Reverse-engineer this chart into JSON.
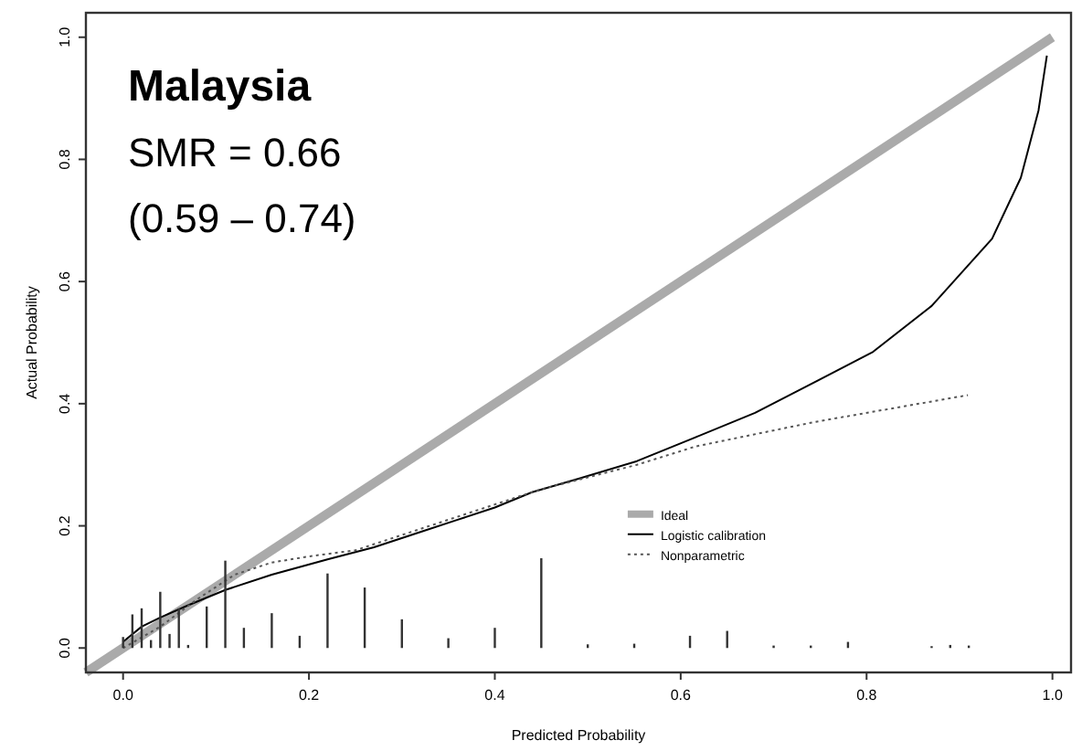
{
  "chart_data": {
    "type": "line",
    "xlabel": "Predicted Probability",
    "ylabel": "Actual Probability",
    "annotations": [
      "Malaysia",
      "SMR = 0.66",
      "(0.59 – 0.74)"
    ],
    "xlim": [
      -0.04,
      1.02
    ],
    "ylim": [
      -0.04,
      1.04
    ],
    "xticks": [
      {
        "value": 0,
        "label": "0.0"
      },
      {
        "value": 0.2,
        "label": "0.2"
      },
      {
        "value": 0.4,
        "label": "0.4"
      },
      {
        "value": 0.6,
        "label": "0.6"
      },
      {
        "value": 0.8,
        "label": "0.8"
      },
      {
        "value": 1,
        "label": "1.0"
      }
    ],
    "yticks": [
      {
        "value": 0,
        "label": "0.0"
      },
      {
        "value": 0.2,
        "label": "0.2"
      },
      {
        "value": 0.4,
        "label": "0.4"
      },
      {
        "value": 0.6,
        "label": "0.6"
      },
      {
        "value": 0.8,
        "label": "0.8"
      },
      {
        "value": 1,
        "label": "1.0"
      }
    ],
    "grid": false,
    "legend": "bottom",
    "series": [
      {
        "name": "Ideal",
        "color": "#aaaaaa",
        "line_style": "solid",
        "x": [
          -0.04,
          1.0
        ],
        "values": [
          -0.04,
          1.0
        ]
      },
      {
        "name": "Logistic calibration",
        "color": "#000000",
        "line_style": "solid",
        "x": [
          0.0,
          0.02,
          0.04,
          0.07,
          0.11,
          0.16,
          0.22,
          0.27,
          0.32,
          0.36,
          0.4,
          0.44,
          0.49,
          0.553,
          0.616,
          0.68,
          0.744,
          0.807,
          0.87,
          0.935,
          0.966,
          0.985,
          0.994
        ],
        "values": [
          0.01,
          0.035,
          0.05,
          0.07,
          0.095,
          0.12,
          0.145,
          0.165,
          0.19,
          0.21,
          0.23,
          0.255,
          0.277,
          0.306,
          0.345,
          0.385,
          0.435,
          0.485,
          0.56,
          0.67,
          0.77,
          0.88,
          0.97
        ]
      },
      {
        "name": "Nonparametric",
        "color": "#555555",
        "line_style": "dotted",
        "x": [
          0.0,
          0.04,
          0.08,
          0.12,
          0.16,
          0.2,
          0.25,
          0.3,
          0.4,
          0.45,
          0.553,
          0.616,
          0.744,
          0.909
        ],
        "values": [
          0.0,
          0.035,
          0.08,
          0.12,
          0.14,
          0.15,
          0.16,
          0.185,
          0.235,
          0.26,
          0.3,
          0.33,
          0.37,
          0.414
        ]
      },
      {
        "type": "bar",
        "color": "#333333",
        "x": [
          0.0,
          0.01,
          0.02,
          0.03,
          0.04,
          0.05,
          0.06,
          0.07,
          0.09,
          0.11,
          0.13,
          0.16,
          0.19,
          0.22,
          0.26,
          0.3,
          0.35,
          0.4,
          0.45,
          0.5,
          0.55,
          0.61,
          0.65,
          0.7,
          0.74,
          0.78,
          0.87,
          0.89,
          0.91
        ],
        "values": [
          0.018,
          0.055,
          0.065,
          0.013,
          0.092,
          0.023,
          0.065,
          0.005,
          0.068,
          0.143,
          0.033,
          0.057,
          0.02,
          0.122,
          0.099,
          0.047,
          0.016,
          0.033,
          0.147,
          0.006,
          0.007,
          0.02,
          0.028,
          0.004,
          0.004,
          0.01,
          0.003,
          0.005,
          0.004
        ]
      }
    ]
  }
}
